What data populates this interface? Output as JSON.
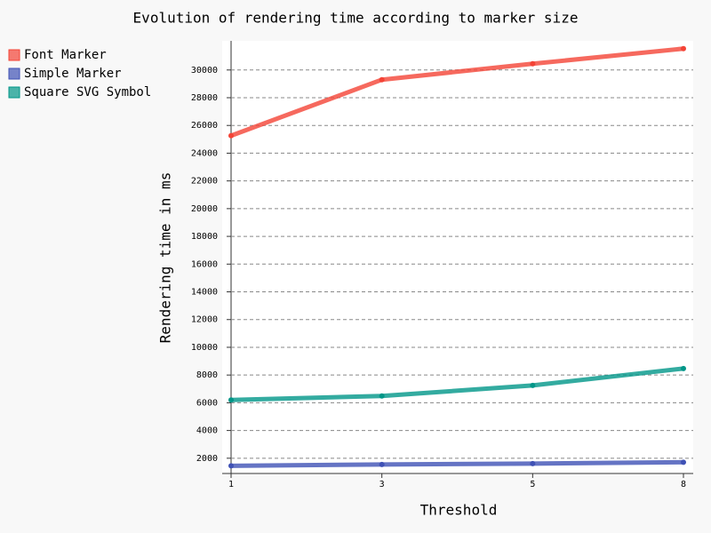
{
  "chart_data": {
    "type": "line",
    "title": "Evolution of rendering time according to marker size",
    "x_label": "Threshold",
    "y_label": "Rendering time in ms",
    "categories": [
      "1",
      "3",
      "5",
      "8"
    ],
    "series": [
      {
        "name": "Font Marker",
        "color": "#F44336",
        "values": [
          25260,
          29300,
          30450,
          31540
        ]
      },
      {
        "name": "Simple Marker",
        "color": "#3F51B5",
        "values": [
          1455,
          1550,
          1615,
          1710
        ]
      },
      {
        "name": "Square SVG Symbol",
        "color": "#009688",
        "values": [
          6200,
          6490,
          7250,
          8470
        ]
      }
    ],
    "ylim": [
      900,
      32100
    ],
    "yticks": [
      2000,
      4000,
      6000,
      8000,
      10000,
      12000,
      14000,
      16000,
      18000,
      20000,
      22000,
      24000,
      26000,
      28000,
      30000
    ],
    "grid": true,
    "legend": "top-left"
  }
}
